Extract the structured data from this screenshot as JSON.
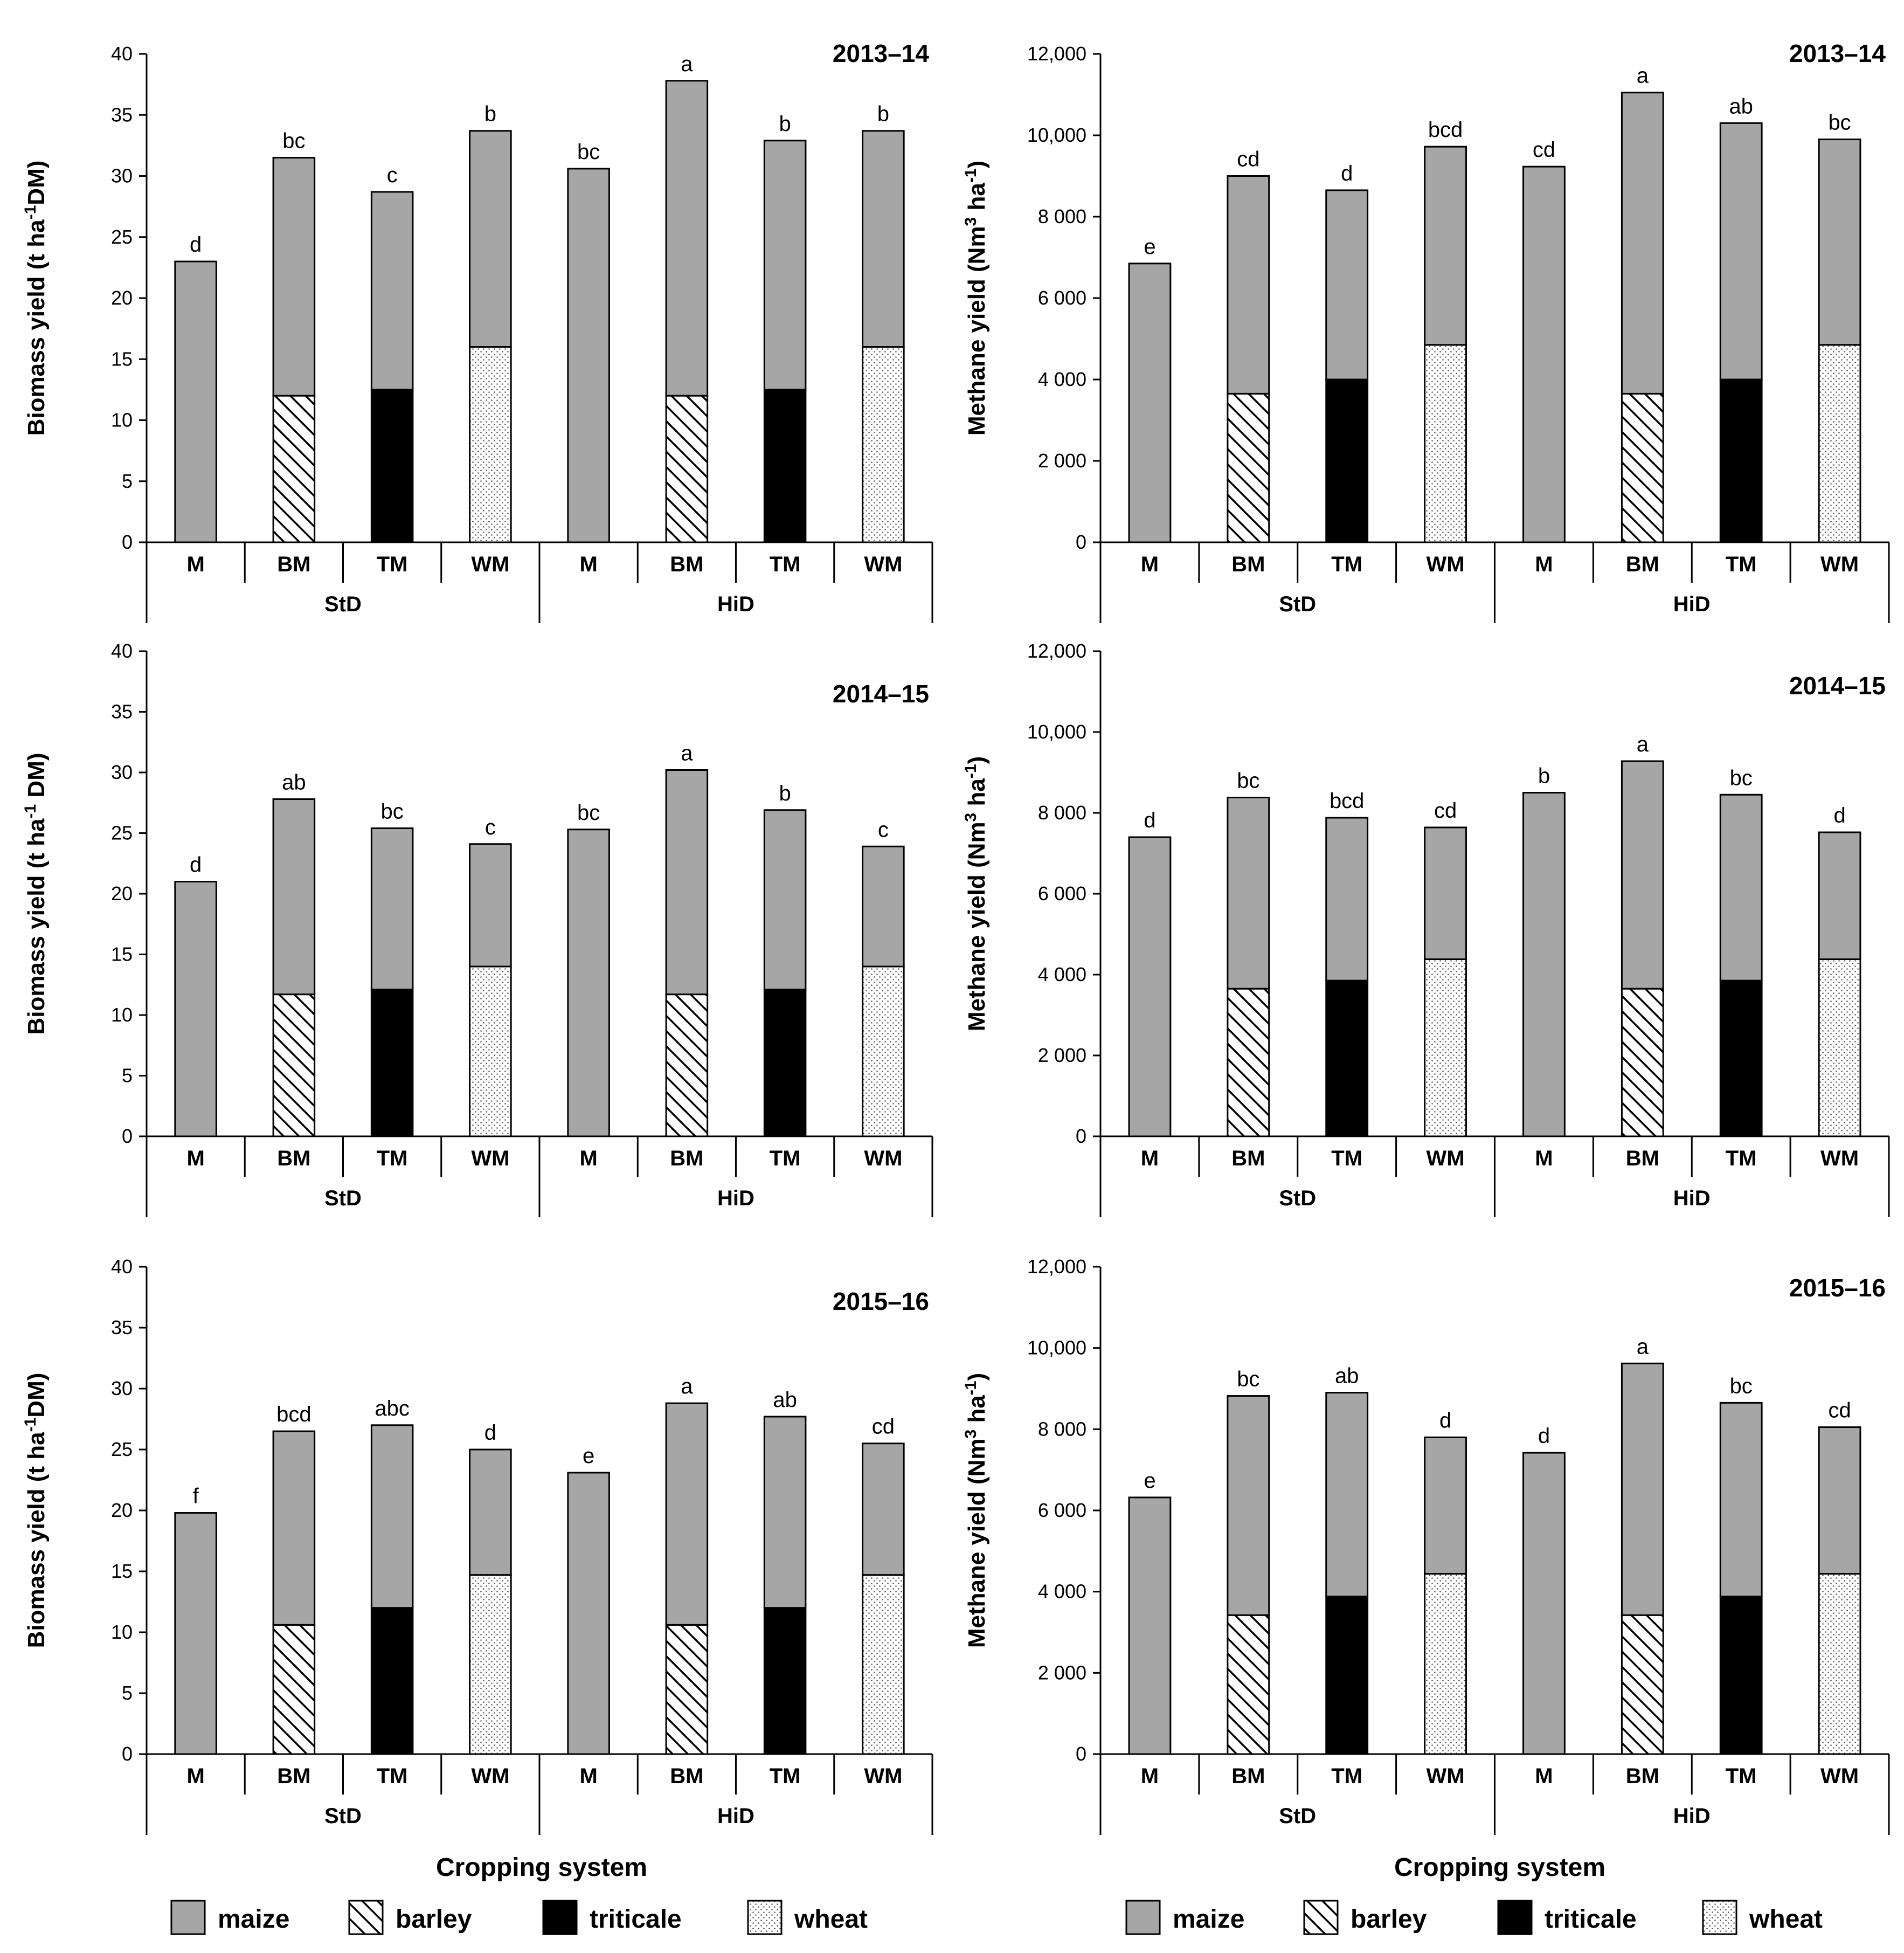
{
  "chart_data": {
    "type": "bar",
    "stacked": true,
    "legend_placement": "bottom",
    "legend": [
      "maize",
      "barley",
      "triticale",
      "wheat"
    ],
    "colors": {
      "maize": "#a6a6a6",
      "barley": "hatched",
      "triticale": "#000000",
      "wheat": "dotted"
    },
    "x_title": "Cropping system",
    "groups": [
      "StD",
      "HiD"
    ],
    "categories": [
      "M",
      "BM",
      "TM",
      "WM",
      "M",
      "BM",
      "TM",
      "WM"
    ],
    "charts": [
      {
        "id": "bio-2013",
        "year": "2013–14",
        "ylabel_main": "Biomass yield (t ha",
        "ylabel_sup": "-1",
        "ylabel_tail": "DM)",
        "ylim": [
          0,
          40
        ],
        "yticks": [
          "0",
          "5",
          "10",
          "15",
          "20",
          "25",
          "30",
          "35",
          "40"
        ],
        "winter": [
          0,
          12,
          12.5,
          16,
          0,
          12,
          12.5,
          16
        ],
        "total": [
          23,
          31.5,
          28.7,
          33.7,
          30.6,
          37.8,
          32.9,
          33.7
        ],
        "letters": [
          "d",
          "bc",
          "c",
          "b",
          "bc",
          "a",
          "b",
          "b"
        ]
      },
      {
        "id": "met-2013",
        "year": "2013–14",
        "ylabel_main": "Methane yield (Nm",
        "ylabel_sup": "3",
        "ylabel_mid": " ha",
        "ylabel_sup2": "-1",
        "ylabel_tail": ")",
        "ylim": [
          0,
          12000
        ],
        "yticks": [
          "0",
          "2 000",
          "4 000",
          "6 000",
          "8 000",
          "10,000",
          "12,000"
        ],
        "winter": [
          0,
          3650,
          4000,
          4850,
          0,
          3650,
          4000,
          4850
        ],
        "total": [
          6850,
          9000,
          8650,
          9720,
          9230,
          11050,
          10300,
          9900
        ],
        "letters": [
          "e",
          "cd",
          "d",
          "bcd",
          "cd",
          "a",
          "ab",
          "bc"
        ]
      },
      {
        "id": "bio-2014",
        "year": "2014–15",
        "ylabel_main": "Biomass yield (t ha",
        "ylabel_sup": "-1",
        "ylabel_tail": " DM)",
        "ylim": [
          0,
          40
        ],
        "yticks": [
          "0",
          "5",
          "10",
          "15",
          "20",
          "25",
          "30",
          "35",
          "40"
        ],
        "winter": [
          0,
          11.7,
          12.1,
          14,
          0,
          11.7,
          12.1,
          14
        ],
        "total": [
          21,
          27.8,
          25.4,
          24.1,
          25.3,
          30.2,
          26.9,
          23.9
        ],
        "letters": [
          "d",
          "ab",
          "bc",
          "c",
          "bc",
          "a",
          "b",
          "c"
        ]
      },
      {
        "id": "met-2014",
        "year": "2014–15",
        "ylabel_main": "Methane yield (Nm",
        "ylabel_sup": "3",
        "ylabel_mid": " ha",
        "ylabel_sup2": "-1",
        "ylabel_tail": ")",
        "ylim": [
          0,
          12000
        ],
        "yticks": [
          "0",
          "2 000",
          "4 000",
          "6 000",
          "8 000",
          "10,000",
          "12,000"
        ],
        "winter": [
          0,
          3650,
          3850,
          4380,
          0,
          3650,
          3850,
          4380
        ],
        "total": [
          7400,
          8380,
          7880,
          7640,
          8500,
          9280,
          8450,
          7520
        ],
        "letters": [
          "d",
          "bc",
          "bcd",
          "cd",
          "b",
          "a",
          "bc",
          "d"
        ]
      },
      {
        "id": "bio-2015",
        "year": "2015–16",
        "ylabel_main": "Biomass yield (t ha",
        "ylabel_sup": "-1",
        "ylabel_tail": "DM)",
        "ylim": [
          0,
          40
        ],
        "yticks": [
          "0",
          "5",
          "10",
          "15",
          "20",
          "25",
          "30",
          "35",
          "40"
        ],
        "winter": [
          0,
          10.6,
          12,
          14.7,
          0,
          10.6,
          12,
          14.7
        ],
        "total": [
          19.8,
          26.5,
          27,
          25,
          23.1,
          28.8,
          27.7,
          25.5
        ],
        "letters": [
          "f",
          "bcd",
          "abc",
          "d",
          "e",
          "a",
          "ab",
          "cd"
        ]
      },
      {
        "id": "met-2015",
        "year": "2015–16",
        "ylabel_main": "Methane yield (Nm",
        "ylabel_sup": "3",
        "ylabel_mid": " ha",
        "ylabel_sup2": "-1",
        "ylabel_tail": ")",
        "ylim": [
          0,
          12000
        ],
        "yticks": [
          "0",
          "2 000",
          "4 000",
          "6 000",
          "8 000",
          "10,000",
          "12,000"
        ],
        "winter": [
          0,
          3420,
          3880,
          4440,
          0,
          3420,
          3880,
          4440
        ],
        "total": [
          6320,
          8820,
          8900,
          7800,
          7420,
          9620,
          8650,
          8050
        ],
        "letters": [
          "e",
          "bc",
          "ab",
          "d",
          "d",
          "a",
          "bc",
          "cd"
        ]
      }
    ]
  }
}
